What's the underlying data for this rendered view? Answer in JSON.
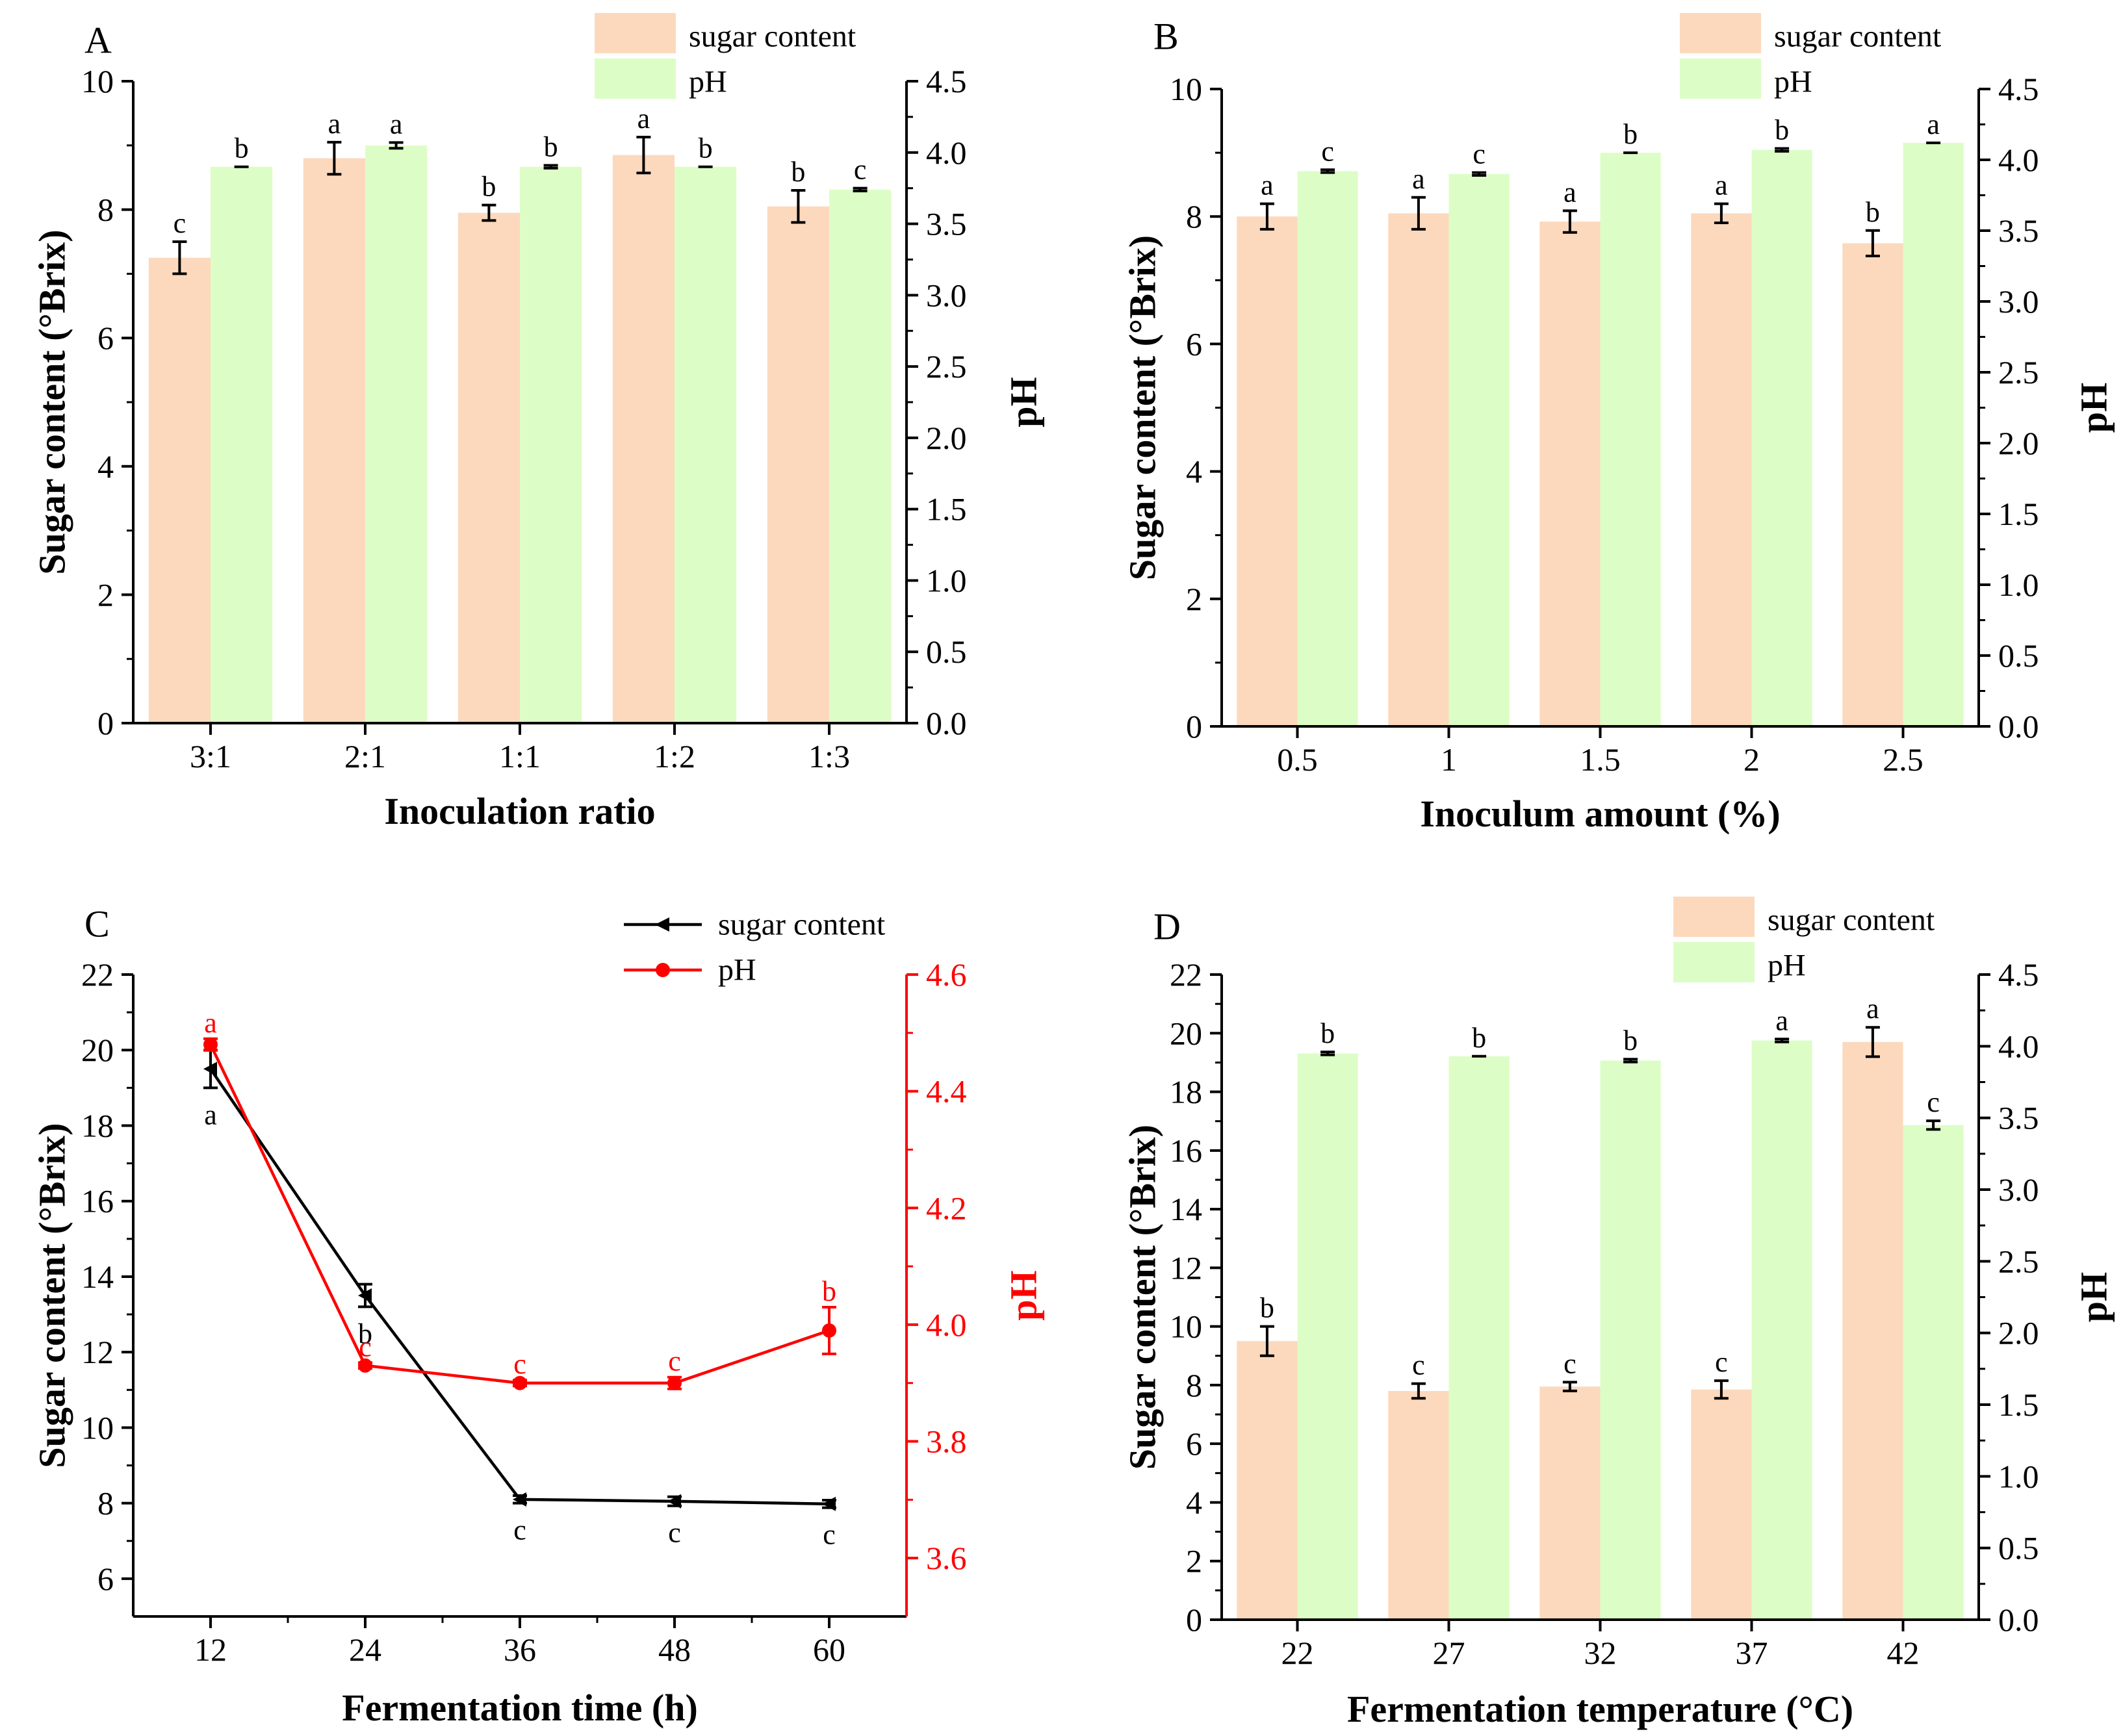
{
  "colors": {
    "sugar_bar": "#fcd9bd",
    "ph_bar": "#ddfdc6",
    "axis": "#000000",
    "sugar_line": "#000000",
    "ph_line": "#ff0000"
  },
  "chart_data": [
    {
      "panel": "A",
      "type": "bar",
      "xlabel": "Inoculation ratio",
      "ylabel": "Sugar content (°Brix)",
      "y2label": "pH",
      "categories": [
        "3:1",
        "2:1",
        "1:1",
        "1:2",
        "1:3"
      ],
      "ylim": [
        0,
        10
      ],
      "yticks": [
        0,
        2,
        4,
        6,
        8,
        10
      ],
      "y2lim": [
        0,
        4.5
      ],
      "y2ticks": [
        "0.0",
        "0.5",
        "1.0",
        "1.5",
        "2.0",
        "2.5",
        "3.0",
        "3.5",
        "4.0",
        "4.5"
      ],
      "legend": [
        "sugar content",
        "pH"
      ],
      "series": [
        {
          "name": "sugar content",
          "axis": "left",
          "values": [
            7.25,
            8.8,
            7.95,
            8.85,
            8.05
          ],
          "errors": [
            0.25,
            0.25,
            0.12,
            0.28,
            0.25
          ],
          "letters": [
            "c",
            "a",
            "b",
            "a",
            "b"
          ]
        },
        {
          "name": "pH",
          "axis": "right",
          "values": [
            3.9,
            4.05,
            3.9,
            3.9,
            3.74
          ],
          "errors": [
            0,
            0.02,
            0.01,
            0,
            0.01
          ],
          "letters": [
            "b",
            "a",
            "b",
            "b",
            "c"
          ]
        }
      ]
    },
    {
      "panel": "B",
      "type": "bar",
      "xlabel": "Inoculum amount (%)",
      "ylabel": "Sugar content (°Brix)",
      "y2label": "pH",
      "categories": [
        "0.5",
        "1",
        "1.5",
        "2",
        "2.5"
      ],
      "ylim": [
        0,
        10
      ],
      "yticks": [
        0,
        2,
        4,
        6,
        8,
        10
      ],
      "y2lim": [
        0,
        4.5
      ],
      "y2ticks": [
        "0.0",
        "0.5",
        "1.0",
        "1.5",
        "2.0",
        "2.5",
        "3.0",
        "3.5",
        "4.0",
        "4.5"
      ],
      "legend": [
        "sugar content",
        "pH"
      ],
      "series": [
        {
          "name": "sugar content",
          "axis": "left",
          "values": [
            8.0,
            8.05,
            7.92,
            8.05,
            7.58
          ],
          "errors": [
            0.2,
            0.25,
            0.17,
            0.15,
            0.2
          ],
          "letters": [
            "a",
            "a",
            "a",
            "a",
            "b"
          ]
        },
        {
          "name": "pH",
          "axis": "right",
          "values": [
            3.92,
            3.9,
            4.05,
            4.07,
            4.12
          ],
          "errors": [
            0.01,
            0.01,
            0,
            0.01,
            0
          ],
          "letters": [
            "c",
            "c",
            "b",
            "b",
            "a"
          ]
        }
      ]
    },
    {
      "panel": "C",
      "type": "line",
      "xlabel": "Fermentation time (h)",
      "ylabel": "Sugar content (°Brix)",
      "y2label": "pH",
      "x": [
        12,
        24,
        36,
        48,
        60
      ],
      "xlim": [
        6,
        66
      ],
      "xticks": [
        12,
        24,
        36,
        48,
        60
      ],
      "ylim": [
        5,
        22
      ],
      "yticks": [
        6,
        8,
        10,
        12,
        14,
        16,
        18,
        20,
        22
      ],
      "y2lim": [
        3.5,
        4.6
      ],
      "y2ticks": [
        "3.6",
        "3.8",
        "4.0",
        "4.2",
        "4.4",
        "4.6"
      ],
      "legend": [
        "sugar content",
        "pH"
      ],
      "series": [
        {
          "name": "sugar content",
          "axis": "left",
          "values": [
            19.5,
            13.5,
            8.1,
            8.05,
            7.98
          ],
          "errors": [
            0.5,
            0.3,
            0.1,
            0.12,
            0.1
          ],
          "letters": [
            "a",
            "b",
            "c",
            "c",
            "c"
          ]
        },
        {
          "name": "pH",
          "axis": "right",
          "values": [
            4.48,
            3.93,
            3.9,
            3.9,
            3.99
          ],
          "errors": [
            0.01,
            0.005,
            0.005,
            0.01,
            0.04
          ],
          "letters": [
            "a",
            "c",
            "c",
            "c",
            "b"
          ]
        }
      ]
    },
    {
      "panel": "D",
      "type": "bar",
      "xlabel": "Fermentation temperature (°C)",
      "ylabel": "Sugar content (°Brix)",
      "y2label": "pH",
      "categories": [
        "22",
        "27",
        "32",
        "37",
        "42"
      ],
      "ylim": [
        0,
        22
      ],
      "yticks": [
        0,
        2,
        4,
        6,
        8,
        10,
        12,
        14,
        16,
        18,
        20,
        22
      ],
      "y2lim": [
        0,
        4.5
      ],
      "y2ticks": [
        "0.0",
        "0.5",
        "1.0",
        "1.5",
        "2.0",
        "2.5",
        "3.0",
        "3.5",
        "4.0",
        "4.5"
      ],
      "legend": [
        "sugar content",
        "pH"
      ],
      "series": [
        {
          "name": "sugar content",
          "axis": "left",
          "values": [
            9.5,
            7.8,
            7.95,
            7.85,
            19.7
          ],
          "errors": [
            0.5,
            0.25,
            0.15,
            0.3,
            0.5
          ],
          "letters": [
            "b",
            "c",
            "c",
            "c",
            "a"
          ]
        },
        {
          "name": "pH",
          "axis": "right",
          "values": [
            3.95,
            3.93,
            3.9,
            4.04,
            3.45
          ],
          "errors": [
            0.01,
            0,
            0.01,
            0.01,
            0.03
          ],
          "letters": [
            "b",
            "b",
            "b",
            "a",
            "c"
          ]
        }
      ]
    }
  ]
}
